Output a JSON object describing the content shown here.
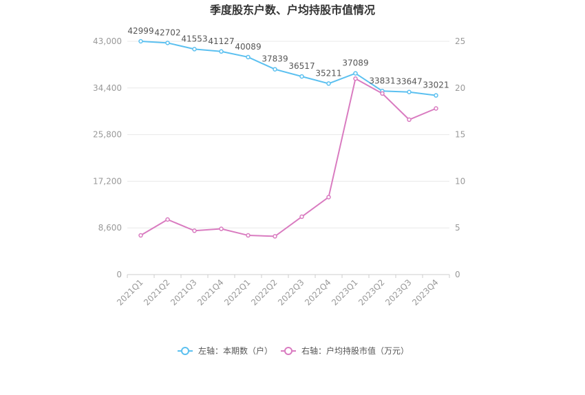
{
  "chart_data": {
    "type": "line",
    "title": "季度股东户数、户均持股市值情况",
    "categories": [
      "2021Q1",
      "2021Q2",
      "2021Q3",
      "2021Q4",
      "2022Q1",
      "2022Q2",
      "2022Q3",
      "2022Q4",
      "2023Q1",
      "2023Q2",
      "2023Q3",
      "2023Q4"
    ],
    "left_axis": {
      "min": 0,
      "max": 43000,
      "ticks": [
        "0",
        "8,600",
        "17,200",
        "25,800",
        "34,400",
        "43,000"
      ],
      "tick_values": [
        0,
        8600,
        17200,
        25800,
        34400,
        43000
      ]
    },
    "right_axis": {
      "min": 0,
      "max": 25,
      "ticks": [
        "0",
        "5",
        "10",
        "15",
        "20",
        "25"
      ],
      "tick_values": [
        0,
        5,
        10,
        15,
        20,
        25
      ]
    },
    "series": [
      {
        "name": "左轴：本期数（户）",
        "axis": "left",
        "color": "#5bc0f0",
        "values": [
          42999,
          42702,
          41553,
          41127,
          40089,
          37839,
          36517,
          35211,
          37089,
          33831,
          33647,
          33021
        ],
        "labels": [
          "42999",
          "42702",
          "41553",
          "41127",
          "40089",
          "37839",
          "36517",
          "35211",
          "37089",
          "33831",
          "33647",
          "33021"
        ]
      },
      {
        "name": "右轴：户均持股市值（万元）",
        "axis": "right",
        "color": "#d97bc0",
        "values": [
          4.2,
          5.9,
          4.7,
          4.9,
          4.2,
          4.1,
          6.2,
          8.3,
          21.0,
          19.4,
          16.6,
          17.8
        ]
      }
    ],
    "grid": true,
    "legend_position": "bottom-center"
  }
}
